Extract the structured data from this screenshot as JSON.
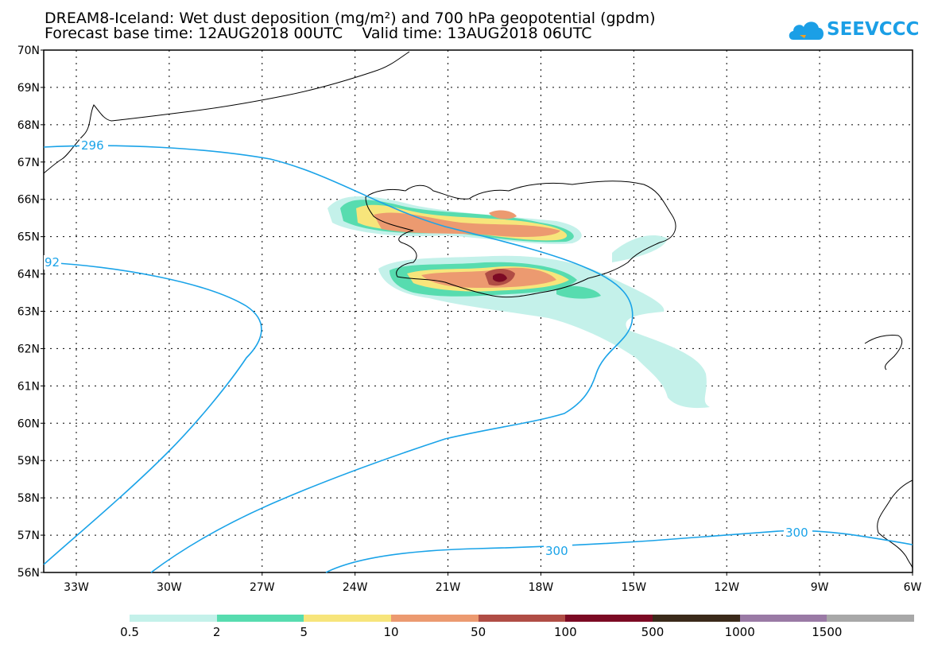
{
  "title": {
    "line1": "DREAM8-Iceland: Wet dust deposition (mg/m²) and 700 hPa geopotential (gpdm)",
    "line2": "Forecast base time: 12AUG2018 00UTC    Valid time: 13AUG2018 06UTC"
  },
  "logo": {
    "text": "SEEVCCC",
    "color": "#1b9fe6"
  },
  "axes": {
    "lat_labels": [
      "70N",
      "69N",
      "68N",
      "67N",
      "66N",
      "65N",
      "64N",
      "63N",
      "62N",
      "61N",
      "60N",
      "59N",
      "58N",
      "57N",
      "56N"
    ],
    "lon_labels": [
      "33W",
      "30W",
      "27W",
      "24W",
      "21W",
      "18W",
      "15W",
      "12W",
      "9W",
      "6W"
    ]
  },
  "contours": {
    "color": "#1aa3e8",
    "labels": [
      "296",
      "92",
      "300",
      "300"
    ]
  },
  "legend": {
    "colors": [
      "#c4f1ea",
      "#57dcaf",
      "#f7e57b",
      "#ec9a70",
      "#b04d45",
      "#7c0a24",
      "#3b2a1a",
      "#9a7aa5",
      "#a8a8a8"
    ],
    "labels": [
      "0.5",
      "2",
      "5",
      "10",
      "50",
      "100",
      "500",
      "1000",
      "1500"
    ]
  }
}
